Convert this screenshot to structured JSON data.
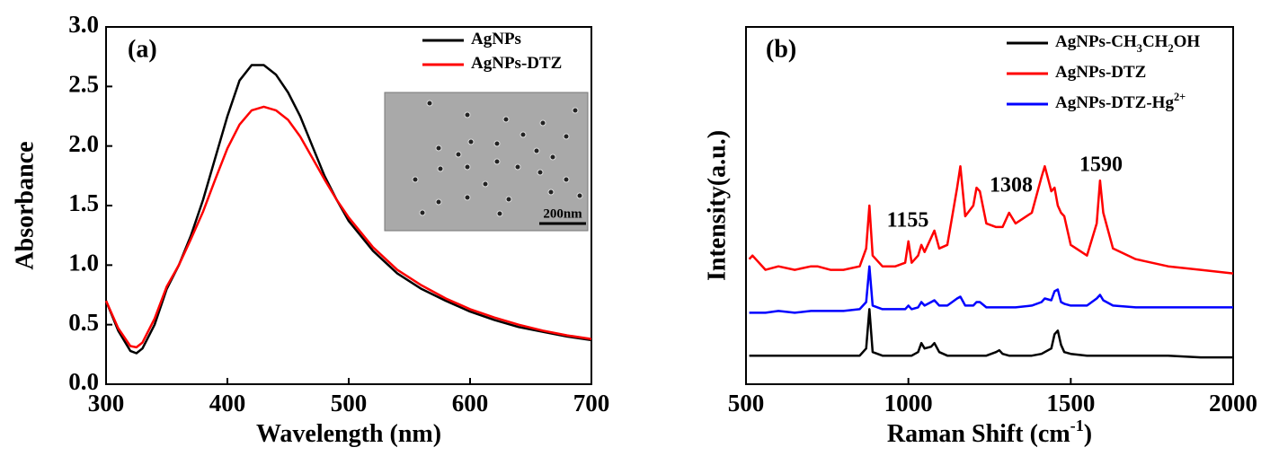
{
  "chart_data": [
    {
      "type": "line",
      "panel_label": "(a)",
      "xlabel": "Wavelength (nm)",
      "ylabel": "Absorbance",
      "xlim": [
        300,
        700
      ],
      "xticks": [
        300,
        400,
        500,
        600,
        700
      ],
      "ylim": [
        0,
        3
      ],
      "yticks": [
        {
          "value": 0,
          "label": "0.0"
        },
        0.5,
        {
          "value": 1,
          "label": "1.0"
        },
        1.5,
        {
          "value": 2,
          "label": "2.0"
        },
        2.5,
        {
          "value": 3,
          "label": "3.0"
        }
      ],
      "legend": "upper right",
      "inset": {
        "scale_bar": "200nm"
      },
      "x": [
        300,
        310,
        320,
        325,
        330,
        340,
        350,
        360,
        370,
        380,
        390,
        400,
        410,
        420,
        430,
        440,
        450,
        460,
        470,
        480,
        490,
        500,
        520,
        540,
        560,
        580,
        600,
        620,
        640,
        660,
        680,
        700
      ],
      "series": [
        {
          "name": "AgNPs",
          "color": "#000000",
          "values": [
            0.7,
            0.45,
            0.28,
            0.26,
            0.3,
            0.5,
            0.8,
            1.0,
            1.25,
            1.55,
            1.9,
            2.25,
            2.55,
            2.68,
            2.68,
            2.6,
            2.45,
            2.25,
            2.0,
            1.75,
            1.55,
            1.37,
            1.12,
            0.93,
            0.8,
            0.7,
            0.61,
            0.54,
            0.48,
            0.44,
            0.4,
            0.37
          ]
        },
        {
          "name": "AgNPs-DTZ",
          "color": "#ff0000",
          "values": [
            0.7,
            0.47,
            0.32,
            0.31,
            0.35,
            0.55,
            0.82,
            1.0,
            1.22,
            1.45,
            1.72,
            1.98,
            2.18,
            2.3,
            2.33,
            2.3,
            2.22,
            2.08,
            1.9,
            1.72,
            1.55,
            1.4,
            1.15,
            0.96,
            0.83,
            0.72,
            0.63,
            0.56,
            0.5,
            0.45,
            0.41,
            0.38
          ]
        }
      ]
    },
    {
      "type": "line",
      "panel_label": "(b)",
      "xlabel": "Raman Shift (cm-1)",
      "ylabel": "Intensity(a.u.)",
      "xlim": [
        500,
        2000
      ],
      "xticks": [
        500,
        1000,
        1500,
        2000
      ],
      "ylim": [
        0,
        100
      ],
      "legend": "upper right",
      "annotations": [
        "1155",
        "1308",
        "1590"
      ],
      "x": [
        510,
        520,
        560,
        600,
        650,
        700,
        720,
        760,
        800,
        850,
        870,
        880,
        890,
        920,
        960,
        990,
        1000,
        1010,
        1030,
        1040,
        1050,
        1070,
        1080,
        1095,
        1120,
        1150,
        1160,
        1175,
        1200,
        1210,
        1220,
        1240,
        1270,
        1280,
        1290,
        1310,
        1330,
        1380,
        1410,
        1420,
        1440,
        1450,
        1460,
        1470,
        1480,
        1500,
        1550,
        1580,
        1590,
        1600,
        1630,
        1700,
        1800,
        1900,
        2000
      ],
      "series": [
        {
          "name": "AgNPs-CH3CH2OH",
          "color": "#000000",
          "values": [
            8,
            8,
            8,
            8,
            8,
            8,
            8,
            8,
            8,
            8,
            10,
            21,
            9,
            8,
            8,
            8,
            8,
            8,
            9,
            11.5,
            10,
            10.5,
            11.5,
            9,
            8,
            8,
            8,
            8,
            8,
            8,
            8,
            8,
            9,
            9.5,
            8.5,
            8,
            8,
            8,
            8.5,
            9,
            10,
            14,
            15,
            11,
            9,
            8.5,
            8,
            8,
            8,
            8,
            8,
            8,
            8,
            7.5,
            7.5
          ]
        },
        {
          "name": "AgNPs-DTZ",
          "color": "#ff0000",
          "values": [
            35,
            36,
            32,
            33,
            32,
            33,
            33,
            32,
            32,
            33,
            38,
            50,
            36,
            33,
            33,
            34,
            40,
            34,
            36,
            39,
            37,
            41,
            43,
            38,
            39,
            55,
            61,
            47,
            50,
            55,
            54,
            45,
            44,
            44,
            44,
            48,
            45,
            48,
            58,
            61,
            54,
            55,
            50,
            48,
            47,
            39,
            36,
            45,
            57,
            48,
            38,
            35,
            33,
            32,
            31
          ]
        },
        {
          "name": "AgNPs-DTZ-Hg2+",
          "color": "#0000ff",
          "values": [
            20,
            20,
            20,
            20.5,
            20,
            20.5,
            20.5,
            20.5,
            20.5,
            21,
            23,
            33,
            22,
            21,
            21,
            21,
            22,
            21,
            21.5,
            23,
            22,
            23,
            23.5,
            22,
            22,
            24,
            24.5,
            22,
            22,
            23,
            23,
            21.5,
            21.5,
            21.5,
            21.5,
            21.5,
            21.5,
            22,
            23,
            24,
            23.5,
            26,
            26.5,
            23,
            22.5,
            22,
            22,
            24,
            25,
            23.5,
            22,
            21.5,
            21.5,
            21.5,
            21.5
          ]
        }
      ]
    }
  ]
}
